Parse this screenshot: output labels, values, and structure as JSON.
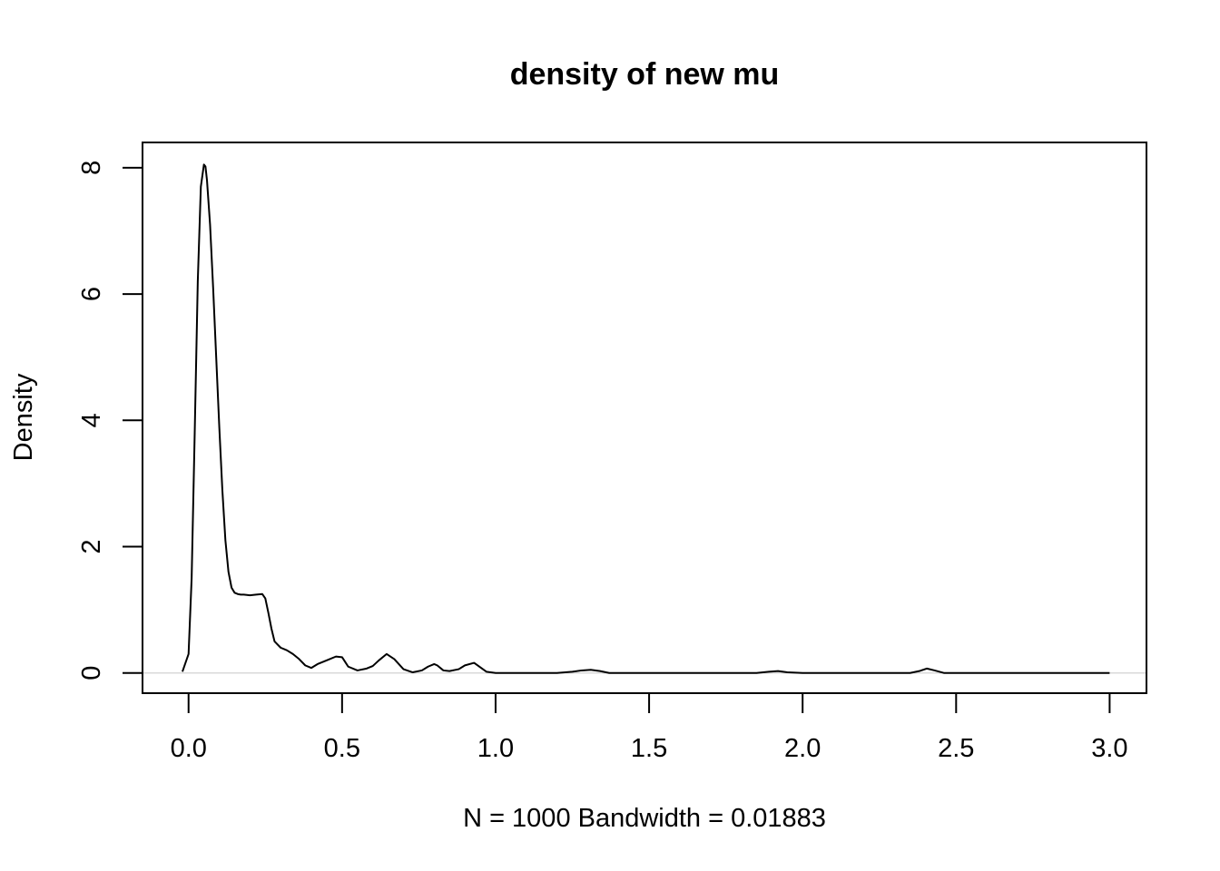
{
  "chart_data": {
    "type": "line",
    "title": "density of new mu",
    "xlabel": "N = 1000   Bandwidth = 0.01883",
    "ylabel": "Density",
    "xlim": [
      -0.15,
      3.12
    ],
    "ylim": [
      -0.32,
      8.4
    ],
    "x_ticks": [
      0.0,
      0.5,
      1.0,
      1.5,
      2.0,
      2.5,
      3.0
    ],
    "x_tick_labels": [
      "0.0",
      "0.5",
      "1.0",
      "1.5",
      "2.0",
      "2.5",
      "3.0"
    ],
    "y_ticks": [
      0,
      2,
      4,
      6,
      8
    ],
    "y_tick_labels": [
      "0",
      "2",
      "4",
      "6",
      "8"
    ],
    "grid": false,
    "line_color": "#000000",
    "zero_line_color": "#d9d9d9",
    "series": [
      {
        "x": [
          -0.02,
          0.0,
          0.01,
          0.02,
          0.03,
          0.04,
          0.05,
          0.055,
          0.06,
          0.07,
          0.08,
          0.09,
          0.1,
          0.11,
          0.12,
          0.13,
          0.14,
          0.15,
          0.16,
          0.17,
          0.18,
          0.2,
          0.22,
          0.24,
          0.25,
          0.26,
          0.27,
          0.28,
          0.3,
          0.32,
          0.34,
          0.36,
          0.38,
          0.4,
          0.42,
          0.45,
          0.48,
          0.5,
          0.52,
          0.55,
          0.58,
          0.6,
          0.62,
          0.645,
          0.67,
          0.7,
          0.73,
          0.76,
          0.78,
          0.8,
          0.81,
          0.83,
          0.85,
          0.88,
          0.9,
          0.93,
          0.95,
          0.97,
          1.0,
          1.1,
          1.2,
          1.25,
          1.28,
          1.31,
          1.34,
          1.37,
          1.5,
          1.7,
          1.85,
          1.89,
          1.92,
          1.95,
          2.0,
          2.2,
          2.35,
          2.38,
          2.405,
          2.43,
          2.46,
          2.6,
          2.8,
          3.0
        ],
        "y": [
          0.02,
          0.3,
          1.5,
          3.8,
          6.2,
          7.7,
          8.05,
          8.02,
          7.8,
          7.1,
          6.1,
          5.0,
          3.9,
          2.9,
          2.1,
          1.6,
          1.35,
          1.27,
          1.25,
          1.24,
          1.24,
          1.23,
          1.24,
          1.25,
          1.18,
          0.95,
          0.7,
          0.5,
          0.4,
          0.36,
          0.3,
          0.22,
          0.12,
          0.08,
          0.14,
          0.2,
          0.26,
          0.25,
          0.1,
          0.04,
          0.07,
          0.11,
          0.2,
          0.3,
          0.22,
          0.06,
          0.01,
          0.04,
          0.1,
          0.14,
          0.12,
          0.04,
          0.03,
          0.06,
          0.12,
          0.16,
          0.09,
          0.02,
          0.0,
          0.0,
          0.0,
          0.02,
          0.04,
          0.05,
          0.03,
          0.0,
          0.0,
          0.0,
          0.0,
          0.02,
          0.03,
          0.01,
          0.0,
          0.0,
          0.0,
          0.03,
          0.07,
          0.04,
          0.0,
          0.0,
          0.0,
          0.0
        ]
      }
    ]
  }
}
